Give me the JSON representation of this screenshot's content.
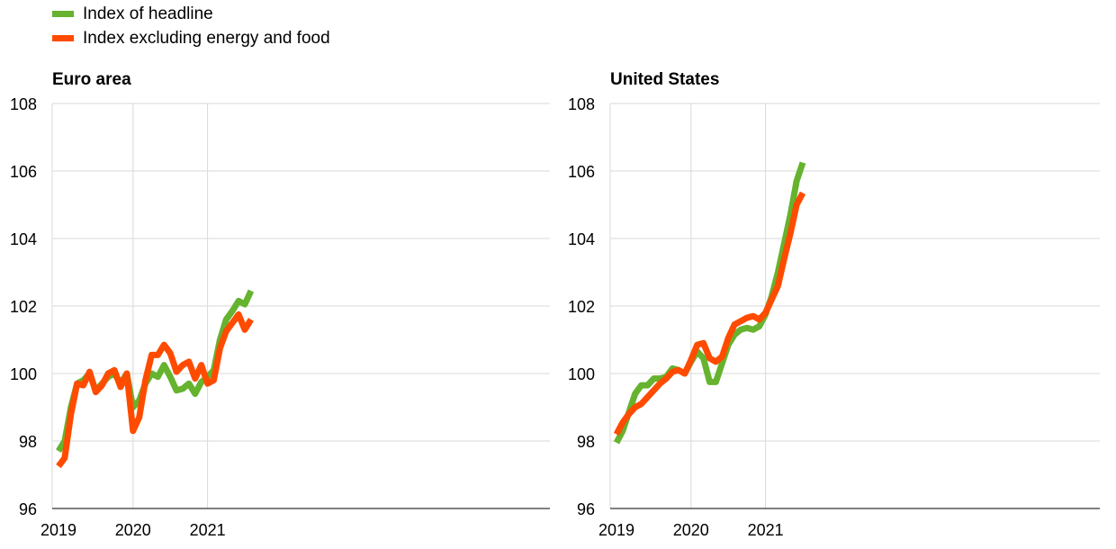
{
  "legend": {
    "items": [
      {
        "label": "Index of headline",
        "color": "#65b32e"
      },
      {
        "label": "Index excluding energy and food",
        "color": "#ff4b00"
      }
    ]
  },
  "chart_data": [
    {
      "type": "line",
      "title": "Euro area",
      "ylim": [
        96,
        108
      ],
      "yticks": [
        96,
        98,
        100,
        102,
        104,
        106,
        108
      ],
      "xticks": [
        "2019",
        "2020",
        "2021"
      ],
      "xlabel": "",
      "ylabel": "",
      "grid": true,
      "x_start": "2019-01",
      "series": [
        {
          "name": "Index of headline",
          "color": "#65b32e",
          "values": [
            97.7,
            98.0,
            99.0,
            99.7,
            99.8,
            100.0,
            99.5,
            99.7,
            99.9,
            100.0,
            99.7,
            100.0,
            99.0,
            99.2,
            99.7,
            100.0,
            99.9,
            100.25,
            99.9,
            99.5,
            99.55,
            99.7,
            99.4,
            99.75,
            99.9,
            100.1,
            101.0,
            101.6,
            101.85,
            102.15,
            102.05,
            102.45
          ]
        },
        {
          "name": "Index excluding energy and food",
          "color": "#ff4b00",
          "values": [
            97.25,
            97.5,
            98.8,
            99.7,
            99.65,
            100.05,
            99.45,
            99.65,
            100.0,
            100.1,
            99.6,
            100.0,
            98.3,
            98.7,
            99.8,
            100.55,
            100.55,
            100.85,
            100.6,
            100.05,
            100.25,
            100.35,
            99.85,
            100.25,
            99.7,
            99.8,
            100.75,
            101.25,
            101.5,
            101.75,
            101.3,
            101.6
          ]
        }
      ]
    },
    {
      "type": "line",
      "title": "United States",
      "ylim": [
        96,
        108
      ],
      "yticks": [
        96,
        98,
        100,
        102,
        104,
        106,
        108
      ],
      "xticks": [
        "2019",
        "2020",
        "2021"
      ],
      "xlabel": "",
      "ylabel": "",
      "grid": true,
      "x_start": "2019-01",
      "series": [
        {
          "name": "Index of headline",
          "color": "#65b32e",
          "values": [
            97.95,
            98.3,
            98.85,
            99.4,
            99.65,
            99.65,
            99.85,
            99.85,
            99.9,
            100.15,
            100.1,
            100.0,
            100.35,
            100.65,
            100.45,
            99.75,
            99.75,
            100.3,
            100.85,
            101.15,
            101.3,
            101.35,
            101.3,
            101.4,
            101.75,
            102.3,
            103.0,
            103.85,
            104.7,
            105.7,
            106.25
          ]
        },
        {
          "name": "Index excluding energy and food",
          "color": "#ff4b00",
          "values": [
            98.2,
            98.55,
            98.8,
            99.0,
            99.1,
            99.3,
            99.5,
            99.7,
            99.85,
            100.05,
            100.1,
            100.0,
            100.4,
            100.85,
            100.9,
            100.45,
            100.35,
            100.5,
            101.05,
            101.45,
            101.55,
            101.65,
            101.7,
            101.6,
            101.8,
            102.2,
            102.6,
            103.4,
            104.15,
            105.0,
            105.35
          ]
        }
      ]
    }
  ]
}
